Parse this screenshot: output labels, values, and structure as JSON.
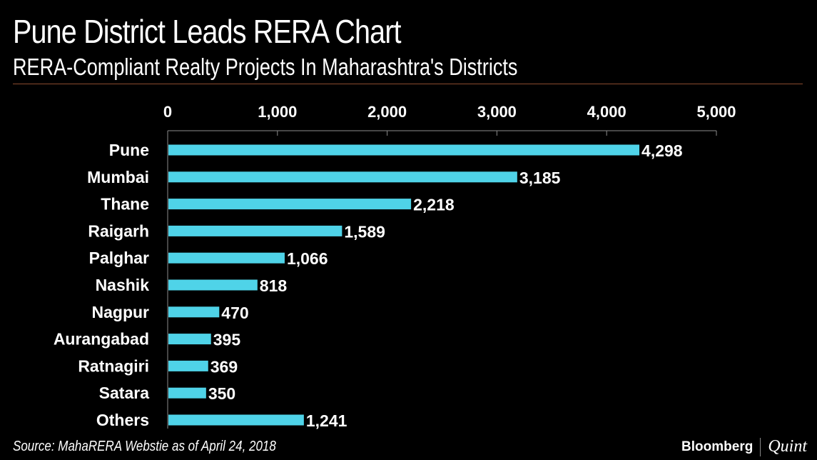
{
  "header": {
    "title": "Pune District Leads RERA Chart",
    "subtitle": "RERA-Compliant Realty Projects In Maharashtra's Districts"
  },
  "footer": {
    "source": "Source: MahaRERA Webstie as of April 24, 2018",
    "brand_primary": "Bloomberg",
    "brand_secondary": "Quint"
  },
  "colors": {
    "background": "#000000",
    "bar": "#4fd3e8",
    "text": "#ffffff",
    "axis": "#8c8c8c",
    "rule": "#8a4a2e"
  },
  "chart_data": {
    "type": "bar",
    "orientation": "horizontal",
    "title": "Pune District Leads RERA Chart",
    "subtitle": "RERA-Compliant Realty Projects In Maharashtra's Districts",
    "categories": [
      "Pune",
      "Mumbai",
      "Thane",
      "Raigarh",
      "Palghar",
      "Nashik",
      "Nagpur",
      "Aurangabad",
      "Ratnagiri",
      "Satara",
      "Others"
    ],
    "values": [
      4298,
      3185,
      2218,
      1589,
      1066,
      818,
      470,
      395,
      369,
      350,
      1241
    ],
    "value_labels": [
      "4,298",
      "3,185",
      "2,218",
      "1,589",
      "1,066",
      "818",
      "470",
      "395",
      "369",
      "350",
      "1,241"
    ],
    "xlim": [
      0,
      5000
    ],
    "ticks": [
      0,
      1000,
      2000,
      3000,
      4000,
      5000
    ],
    "tick_labels": [
      "0",
      "1,000",
      "2,000",
      "3,000",
      "4,000",
      "5,000"
    ],
    "axis_position": "top",
    "grid": false,
    "xlabel": "",
    "ylabel": ""
  }
}
